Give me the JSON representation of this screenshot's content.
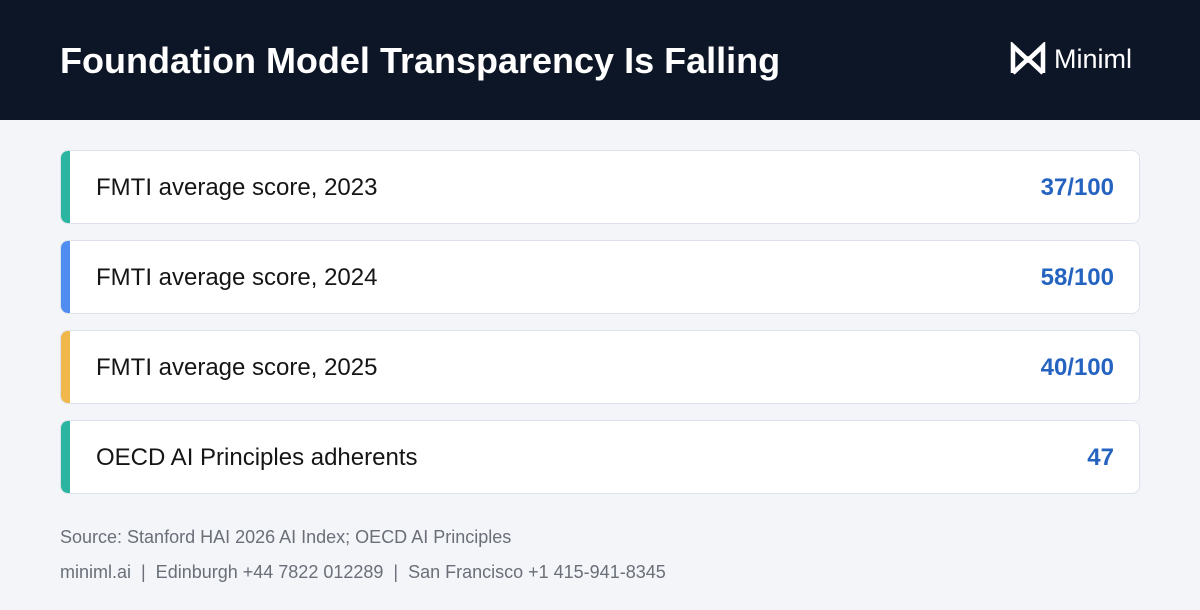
{
  "header": {
    "title": "Foundation Model Transparency Is Falling",
    "brand": "Miniml"
  },
  "rows": [
    {
      "label": "FMTI average score, 2023",
      "value": "37/100",
      "accent": "#2bb5a0"
    },
    {
      "label": "FMTI average score, 2024",
      "value": "58/100",
      "accent": "#4f8ef0"
    },
    {
      "label": "FMTI average score, 2025",
      "value": "40/100",
      "accent": "#f0b84a"
    },
    {
      "label": "OECD AI Principles adherents",
      "value": "47",
      "accent": "#2bb5a0"
    }
  ],
  "footer": {
    "source": "Source: Stanford HAI 2026 AI Index; OECD AI Principles",
    "contact": "miniml.ai  |  Edinburgh +44 7822 012289  |  San Francisco +1 415-941-8345"
  }
}
